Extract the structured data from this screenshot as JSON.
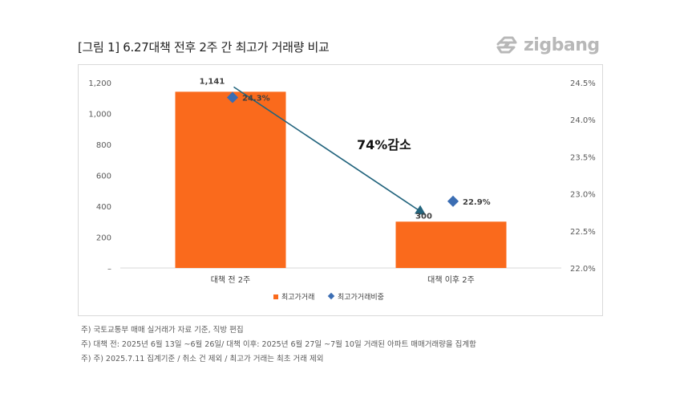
{
  "title": "[그림 1] 6.27대책 전후 2주 간 최고가 거래량 비교",
  "brand": {
    "name": "zigbang",
    "logo_icon": "zigbang-logo-icon",
    "color": "#b8b8b8"
  },
  "chart_data": {
    "type": "bar",
    "categories": [
      "대책 전 2주",
      "대책 이후 2주"
    ],
    "series": [
      {
        "name": "최고가거래",
        "type": "bar",
        "axis": "left",
        "color": "#fa6a1c",
        "values": [
          1141,
          300
        ],
        "labels": [
          "1,141",
          "300"
        ]
      },
      {
        "name": "최고가거래비중",
        "type": "scatter",
        "axis": "right",
        "color": "#3b6db3",
        "values": [
          24.3,
          22.9
        ],
        "labels": [
          "24.3%",
          "22.9%"
        ]
      }
    ],
    "y_left": {
      "min": 0,
      "max": 1200,
      "ticks": [
        0,
        200,
        400,
        600,
        800,
        1000,
        1200
      ],
      "tick_labels": [
        "–",
        "200",
        "400",
        "600",
        "800",
        "1,000",
        "1,200"
      ]
    },
    "y_right": {
      "min": 22.0,
      "max": 24.5,
      "ticks": [
        22.0,
        22.5,
        23.0,
        23.5,
        24.0,
        24.5
      ],
      "tick_labels": [
        "22.0%",
        "22.5%",
        "23.0%",
        "23.5%",
        "24.0%",
        "24.5%"
      ]
    },
    "annotation": {
      "text": "74%감소",
      "arrow_color": "#22647d"
    },
    "legend_position": "bottom"
  },
  "notes": [
    "주) 국토교통부 매매 실거래가 자료 기준, 직방 편집",
    "주) 대책 전: 2025년 6월 13일 ~6월 26일/ 대책 이후: 2025년 6월 27일 ~7월 10일 거래된 아파트 매매거래량을 집계함",
    "주) 주) 2025.7.11 집계기준 / 취소 건 제외 / 최고가 거래는 최초 거래 제외"
  ]
}
